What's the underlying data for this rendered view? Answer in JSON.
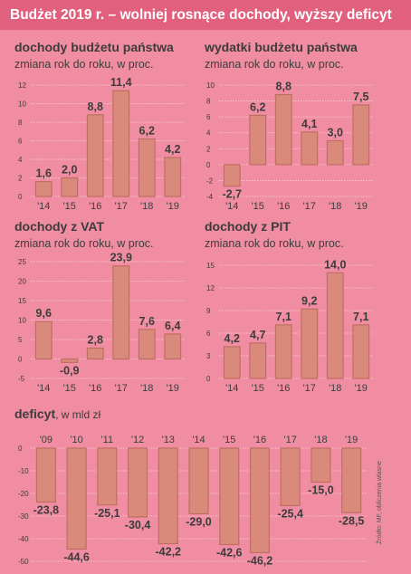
{
  "page": {
    "title": "Budżet 2019 r. – wolniej rosnące dochody, wyższy deficyt",
    "source": "Źródło: MF, obliczenia własne"
  },
  "colors": {
    "background": "#f08da3",
    "title_bar": "#e0607e",
    "bar_fill": "#d98a7a",
    "bar_stroke": "#bf6f61",
    "text": "#3c3c3c",
    "gridline": "#fbd3dc"
  },
  "chart_data": [
    {
      "type": "bar",
      "title": "dochody budżetu państwa",
      "subtitle": "zmiana rok do roku, w proc.",
      "categories": [
        "'14",
        "'15",
        "'16",
        "'17",
        "'18",
        "'19"
      ],
      "values": [
        1.6,
        2.0,
        8.8,
        11.4,
        6.2,
        4.2
      ],
      "value_labels": [
        "1,6",
        "2,0",
        "8,8",
        "11,4",
        "6,2",
        "4,2"
      ],
      "ylim": [
        0,
        12
      ],
      "yticks": [
        0,
        2,
        4,
        6,
        8,
        10,
        12
      ],
      "ytick_labels": [
        "0",
        "2",
        "4",
        "6",
        "8",
        "10",
        "12"
      ],
      "grid": true
    },
    {
      "type": "bar",
      "title": "wydatki budżetu państwa",
      "subtitle": "zmiana rok do roku, w proc.",
      "categories": [
        "'14",
        "'15",
        "'16",
        "'17",
        "'18",
        "'19"
      ],
      "values": [
        -2.7,
        6.2,
        8.8,
        4.1,
        3.0,
        7.5
      ],
      "value_labels": [
        "-2,7",
        "6,2",
        "8,8",
        "4,1",
        "3,0",
        "7,5"
      ],
      "ylim": [
        -4,
        10
      ],
      "yticks": [
        -4,
        -2,
        0,
        2,
        4,
        6,
        8,
        10
      ],
      "ytick_labels": [
        "-4",
        "-2",
        "0",
        "2",
        "4",
        "6",
        "8",
        "10"
      ],
      "grid": true
    },
    {
      "type": "bar",
      "title": "dochody z VAT",
      "subtitle": "zmiana rok do roku, w proc.",
      "categories": [
        "'14",
        "'15",
        "'16",
        "'17",
        "'18",
        "'19"
      ],
      "values": [
        9.6,
        -0.9,
        2.8,
        23.9,
        7.6,
        6.4
      ],
      "value_labels": [
        "9,6",
        "-0,9",
        "2,8",
        "23,9",
        "7,6",
        "6,4"
      ],
      "ylim": [
        -5,
        25
      ],
      "yticks": [
        -5,
        0,
        5,
        10,
        15,
        20,
        25
      ],
      "ytick_labels": [
        "-5",
        "0",
        "5",
        "10",
        "15",
        "20",
        "25"
      ],
      "grid": true
    },
    {
      "type": "bar",
      "title": "dochody z PIT",
      "subtitle": "zmiana rok do roku, w proc.",
      "categories": [
        "'14",
        "'15",
        "'16",
        "'17",
        "'18",
        "'19"
      ],
      "values": [
        4.2,
        4.7,
        7.1,
        9.2,
        14.0,
        7.1
      ],
      "value_labels": [
        "4,2",
        "4,7",
        "7,1",
        "9,2",
        "14,0",
        "7,1"
      ],
      "ylim": [
        0,
        15
      ],
      "yticks": [
        0,
        3,
        6,
        9,
        12,
        15
      ],
      "ytick_labels": [
        "0",
        "3",
        "6",
        "9",
        "12",
        "15"
      ],
      "grid": true
    },
    {
      "type": "bar",
      "title": "deficyt",
      "subtitle": ", w mld zł",
      "categories": [
        "'09",
        "'10",
        "'11",
        "'12",
        "'13",
        "'14",
        "'15",
        "'16",
        "'17",
        "'18",
        "'19"
      ],
      "values": [
        -23.8,
        -44.6,
        -25.1,
        -30.4,
        -42.2,
        -29.0,
        -42.6,
        -46.2,
        -25.4,
        -15.0,
        -28.5
      ],
      "value_labels": [
        "-23,8",
        "-44,6",
        "-25,1",
        "-30,4",
        "-42,2",
        "-29,0",
        "-42,6",
        "-46,2",
        "-25,4",
        "-15,0",
        "-28,5"
      ],
      "ylim": [
        -50,
        0
      ],
      "yticks": [
        0,
        -10,
        -20,
        -30,
        -40,
        -50
      ],
      "ytick_labels": [
        "0",
        "-10",
        "-20",
        "-30",
        "-40",
        "-50"
      ],
      "grid": true
    }
  ]
}
